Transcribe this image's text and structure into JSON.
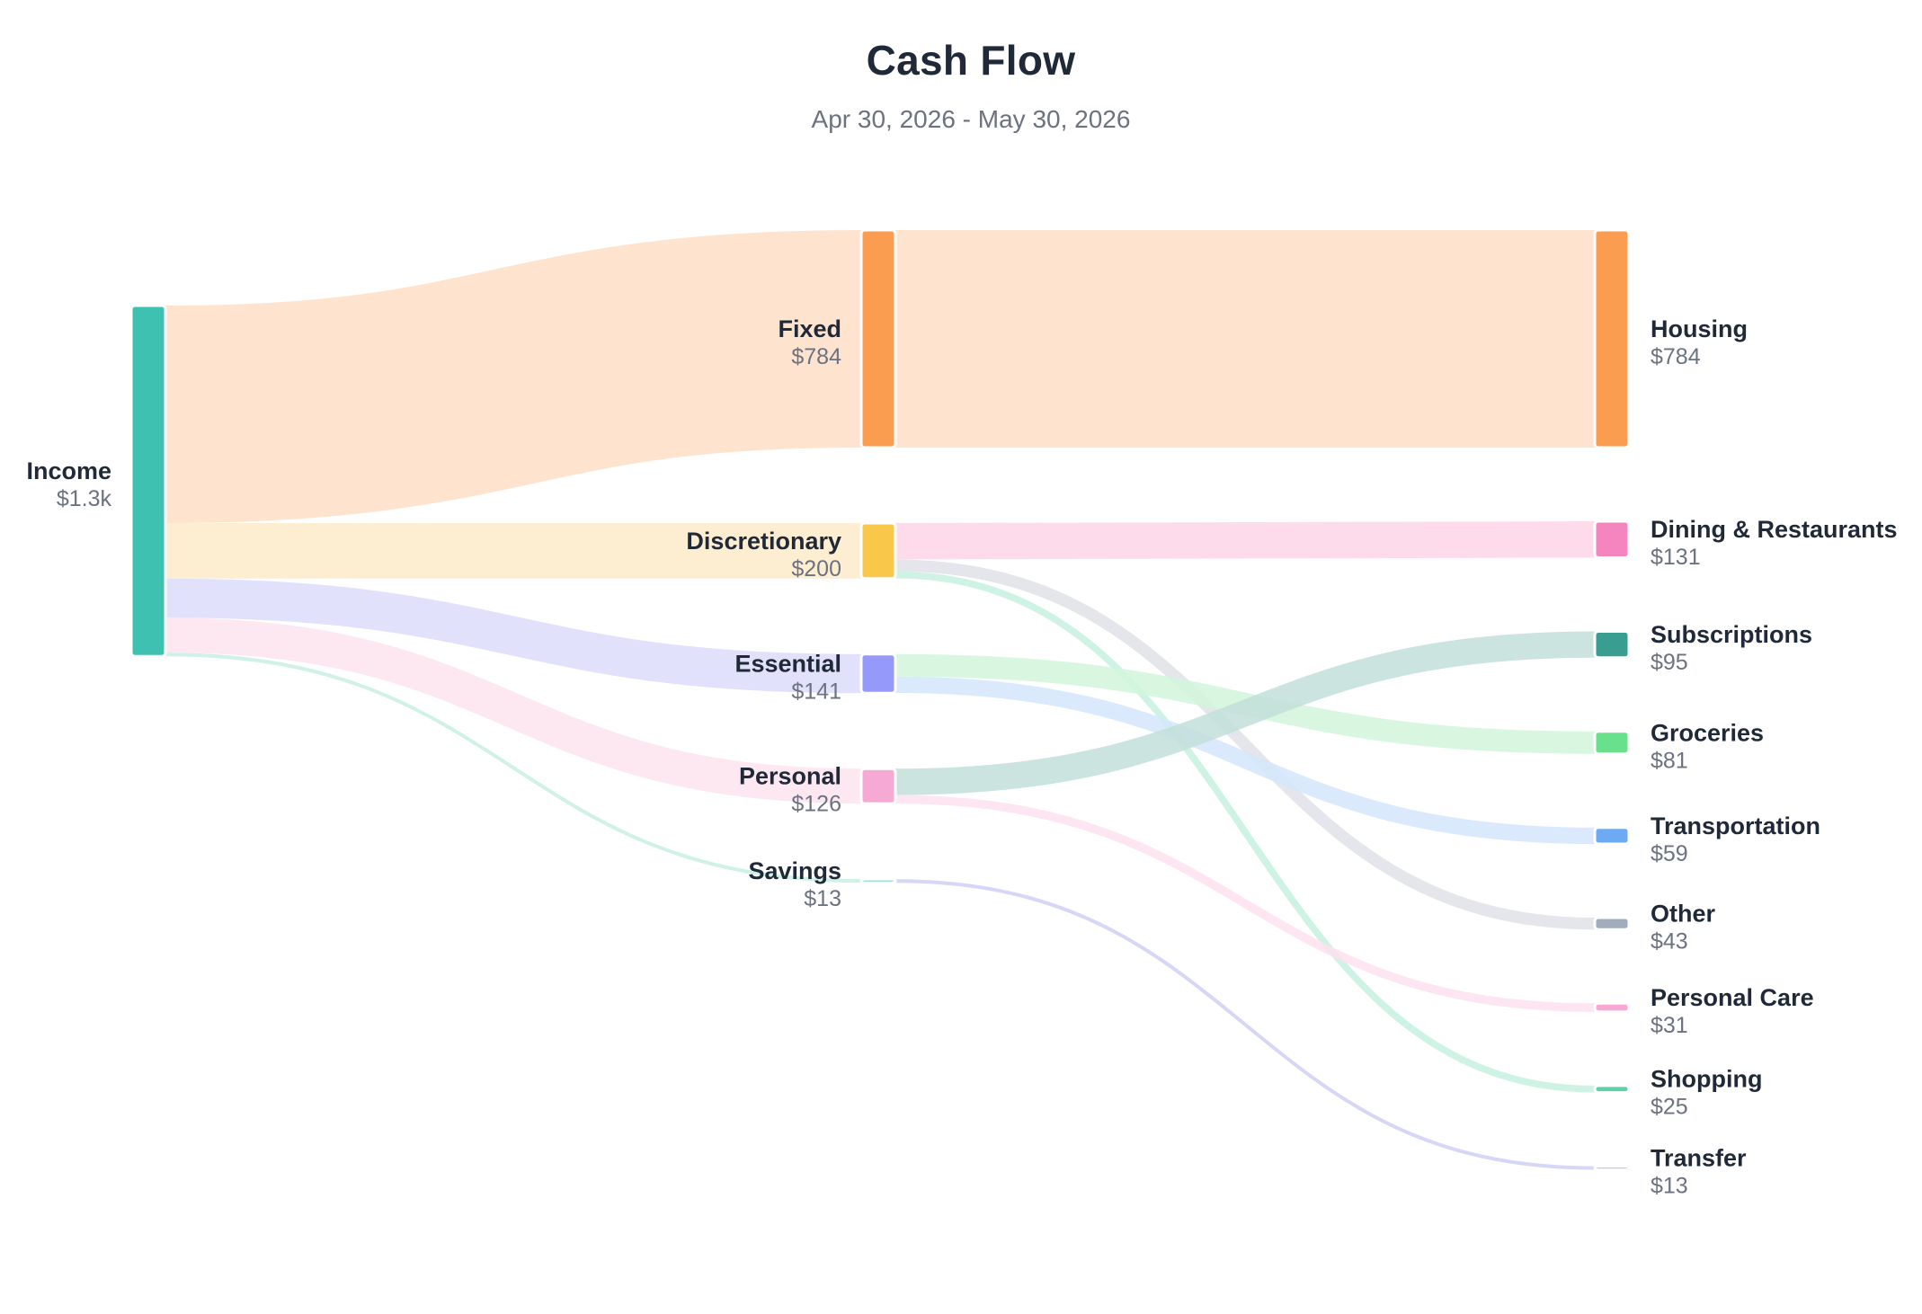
{
  "title": "Cash Flow",
  "subtitle": "Apr 30, 2026 - May 30, 2026",
  "chart_data": {
    "type": "sankey",
    "nodes": [
      {
        "id": "income",
        "name": "Income",
        "value_label": "$1.3k",
        "color": "#3fc1b2"
      },
      {
        "id": "fixed",
        "name": "Fixed",
        "value_label": "$784",
        "color": "#fb9d51"
      },
      {
        "id": "discretionary",
        "name": "Discretionary",
        "value_label": "$200",
        "color": "#f9c84a"
      },
      {
        "id": "essential",
        "name": "Essential",
        "value_label": "$141",
        "color": "#959afa"
      },
      {
        "id": "personal",
        "name": "Personal",
        "value_label": "$126",
        "color": "#f5a9d4"
      },
      {
        "id": "savings",
        "name": "Savings",
        "value_label": "$13",
        "color": "#7ad7c4"
      },
      {
        "id": "housing",
        "name": "Housing",
        "value_label": "$784",
        "color": "#fb9d51"
      },
      {
        "id": "dining",
        "name": "Dining & Restaurants",
        "value_label": "$131",
        "color": "#f485be"
      },
      {
        "id": "subscriptions",
        "name": "Subscriptions",
        "value_label": "$95",
        "color": "#3a9d92"
      },
      {
        "id": "groceries",
        "name": "Groceries",
        "value_label": "$81",
        "color": "#68e08c"
      },
      {
        "id": "transportation",
        "name": "Transportation",
        "value_label": "$59",
        "color": "#6ea9f4"
      },
      {
        "id": "other",
        "name": "Other",
        "value_label": "$43",
        "color": "#a1acbe"
      },
      {
        "id": "personal_care",
        "name": "Personal Care",
        "value_label": "$31",
        "color": "#f5a9d4"
      },
      {
        "id": "shopping",
        "name": "Shopping",
        "value_label": "$25",
        "color": "#5dd0a9"
      },
      {
        "id": "transfer",
        "name": "Transfer",
        "value_label": "$13",
        "color": "#b7b9f0"
      }
    ],
    "links": [
      {
        "source": "income",
        "target": "fixed",
        "value": 784,
        "color": "#fedfc7"
      },
      {
        "source": "income",
        "target": "discretionary",
        "value": 200,
        "color": "#feebc9"
      },
      {
        "source": "income",
        "target": "essential",
        "value": 141,
        "color": "#dcdcfc"
      },
      {
        "source": "income",
        "target": "personal",
        "value": 126,
        "color": "#fde4f0"
      },
      {
        "source": "income",
        "target": "savings",
        "value": 13,
        "color": "#c8eee3"
      },
      {
        "source": "fixed",
        "target": "housing",
        "value": 784,
        "color": "#fedfc7"
      },
      {
        "source": "discretionary",
        "target": "dining",
        "value": 131,
        "color": "#fdd5e8"
      },
      {
        "source": "discretionary",
        "target": "other",
        "value": 43,
        "color": "#dfe2e7"
      },
      {
        "source": "discretionary",
        "target": "shopping",
        "value": 25,
        "color": "#c6f1e1"
      },
      {
        "source": "essential",
        "target": "groceries",
        "value": 81,
        "color": "#d2f6da"
      },
      {
        "source": "essential",
        "target": "transportation",
        "value": 59,
        "color": "#d3e6fc"
      },
      {
        "source": "personal",
        "target": "subscriptions",
        "value": 95,
        "color": "#c2dfd9"
      },
      {
        "source": "personal",
        "target": "personal_care",
        "value": 31,
        "color": "#fde0ee"
      },
      {
        "source": "savings",
        "target": "transfer",
        "value": 13,
        "color": "#cfd0f4"
      }
    ]
  }
}
